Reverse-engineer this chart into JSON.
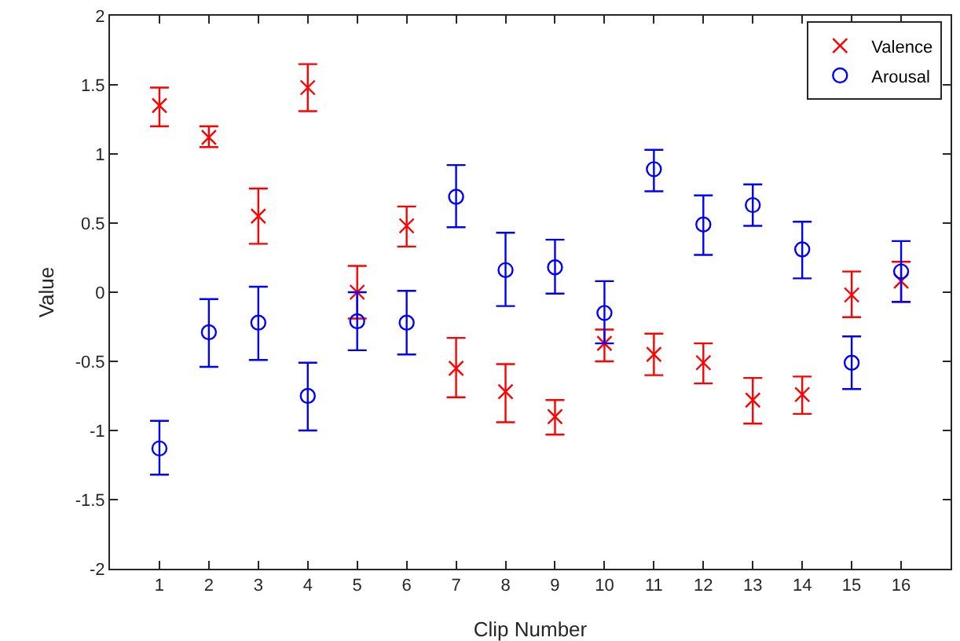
{
  "chart_data": {
    "type": "scatter",
    "xlabel": "Clip Number",
    "ylabel": "Value",
    "x": [
      1,
      2,
      3,
      4,
      5,
      6,
      7,
      8,
      9,
      10,
      11,
      12,
      13,
      14,
      15,
      16
    ],
    "xlim": [
      0,
      17
    ],
    "xticks": [
      1,
      2,
      3,
      4,
      5,
      6,
      7,
      8,
      9,
      10,
      11,
      12,
      13,
      14,
      15,
      16
    ],
    "ylim": [
      -2,
      2
    ],
    "yticks": [
      -2,
      -1.5,
      -1,
      -0.5,
      0,
      0.5,
      1,
      1.5,
      2
    ],
    "grid": false,
    "legend": "top right",
    "series": [
      {
        "name": "Valence",
        "color": "#ff0000",
        "marker": "cross",
        "values": [
          1.35,
          1.12,
          0.55,
          1.48,
          0.0,
          0.48,
          -0.55,
          -0.72,
          -0.9,
          -0.37,
          -0.45,
          -0.51,
          -0.78,
          -0.74,
          -0.02,
          0.08
        ],
        "errors": [
          [
            1.2,
            1.48
          ],
          [
            1.05,
            1.2
          ],
          [
            0.35,
            0.75
          ],
          [
            1.31,
            1.65
          ],
          [
            -0.19,
            0.19
          ],
          [
            0.33,
            0.62
          ],
          [
            -0.76,
            -0.33
          ],
          [
            -0.94,
            -0.52
          ],
          [
            -1.03,
            -0.78
          ],
          [
            -0.5,
            -0.27
          ],
          [
            -0.6,
            -0.3
          ],
          [
            -0.66,
            -0.37
          ],
          [
            -0.95,
            -0.62
          ],
          [
            -0.88,
            -0.61
          ],
          [
            -0.18,
            0.15
          ],
          [
            -0.07,
            0.22
          ]
        ]
      },
      {
        "name": "Arousal",
        "color": "#0000ff",
        "marker": "circle",
        "values": [
          -1.13,
          -0.29,
          -0.22,
          -0.75,
          -0.21,
          -0.22,
          0.69,
          0.16,
          0.18,
          -0.15,
          0.89,
          0.49,
          0.63,
          0.31,
          -0.51,
          0.15
        ],
        "errors": [
          [
            -1.32,
            -0.93
          ],
          [
            -0.54,
            -0.05
          ],
          [
            -0.49,
            0.04
          ],
          [
            -1.0,
            -0.51
          ],
          [
            -0.42,
            0.0
          ],
          [
            -0.45,
            0.01
          ],
          [
            0.47,
            0.92
          ],
          [
            -0.1,
            0.43
          ],
          [
            -0.01,
            0.38
          ],
          [
            -0.37,
            0.08
          ],
          [
            0.73,
            1.03
          ],
          [
            0.27,
            0.7
          ],
          [
            0.48,
            0.78
          ],
          [
            0.1,
            0.51
          ],
          [
            -0.7,
            -0.32
          ],
          [
            -0.07,
            0.37
          ]
        ]
      }
    ]
  }
}
